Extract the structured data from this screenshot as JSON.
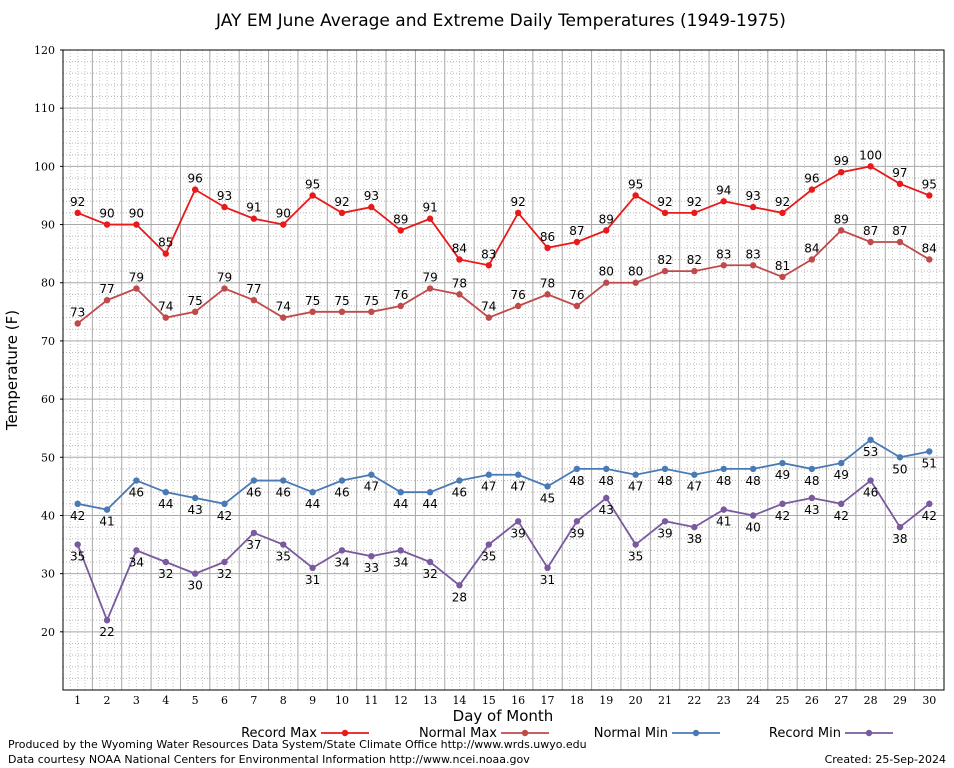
{
  "chart_data": {
    "type": "line",
    "title": "JAY EM June Average and Extreme Daily Temperatures (1949-1975)",
    "xlabel": "Day of Month",
    "ylabel": "Temperature (F)",
    "ylim": [
      10,
      120
    ],
    "xlim": [
      0.5,
      30.5
    ],
    "yticks": [
      20,
      30,
      40,
      50,
      60,
      70,
      80,
      90,
      100,
      110,
      120
    ],
    "x": [
      1,
      2,
      3,
      4,
      5,
      6,
      7,
      8,
      9,
      10,
      11,
      12,
      13,
      14,
      15,
      16,
      17,
      18,
      19,
      20,
      21,
      22,
      23,
      24,
      25,
      26,
      27,
      28,
      29,
      30
    ],
    "grid": true,
    "legend_position": "bottom",
    "series": [
      {
        "name": "Record Max",
        "color": "#e8191b",
        "label_side": "above",
        "values": [
          92,
          90,
          90,
          85,
          96,
          93,
          91,
          90,
          95,
          92,
          93,
          89,
          91,
          84,
          83,
          92,
          86,
          87,
          89,
          95,
          92,
          92,
          94,
          93,
          92,
          96,
          99,
          100,
          97,
          95
        ]
      },
      {
        "name": "Normal Max",
        "color": "#c04a4a",
        "label_side": "above",
        "values": [
          73,
          77,
          79,
          74,
          75,
          79,
          77,
          74,
          75,
          75,
          75,
          76,
          79,
          78,
          74,
          76,
          78,
          76,
          80,
          80,
          82,
          82,
          83,
          83,
          81,
          84,
          89,
          87,
          87,
          84
        ]
      },
      {
        "name": "Normal Min",
        "color": "#4a7ab5",
        "label_side": "below",
        "values": [
          42,
          41,
          46,
          44,
          43,
          42,
          46,
          46,
          44,
          46,
          47,
          44,
          44,
          46,
          47,
          47,
          45,
          48,
          48,
          47,
          48,
          47,
          48,
          48,
          49,
          48,
          49,
          53,
          50,
          51
        ]
      },
      {
        "name": "Record Min",
        "color": "#7a5a9e",
        "label_side": "below",
        "values": [
          35,
          22,
          34,
          32,
          30,
          32,
          37,
          35,
          31,
          34,
          33,
          34,
          32,
          28,
          35,
          39,
          31,
          39,
          43,
          35,
          39,
          38,
          41,
          40,
          42,
          43,
          42,
          46,
          38,
          42
        ]
      }
    ]
  },
  "footer": {
    "line1": "Produced by the Wyoming Water Resources Data System/State Climate Office http://www.wrds.uwyo.edu",
    "line2": "Data courtesy NOAA National Centers for Environmental Information http://www.ncei.noaa.gov",
    "created": "Created:  25-Sep-2024"
  }
}
